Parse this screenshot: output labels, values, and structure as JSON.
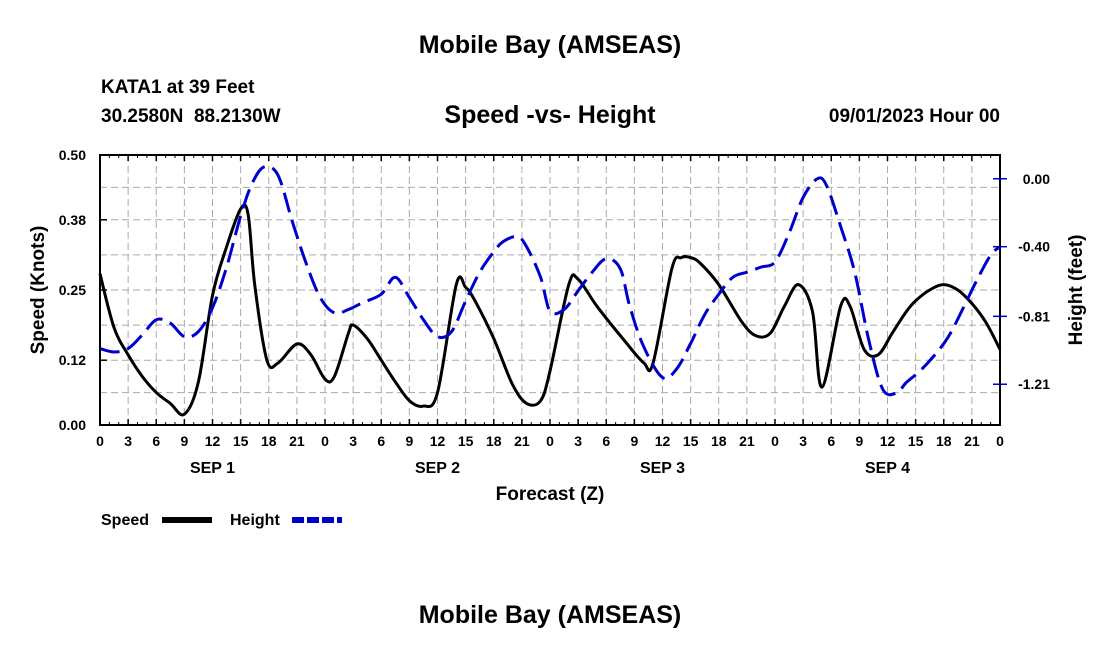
{
  "header": {
    "title": "Mobile Bay (AMSEAS)",
    "station": "KATA1 at 39 Feet",
    "coords": "30.2580N  88.2130W",
    "subtitle": "Speed -vs- Height",
    "datetime": "09/01/2023 Hour 00",
    "footer_title": "Mobile Bay (AMSEAS)"
  },
  "chart_data": {
    "type": "line",
    "title": "Speed -vs- Height",
    "xlabel": "Forecast (Z)",
    "ylabel": "Speed (Knots)",
    "y2label": "Height (feet)",
    "x_tick_labels": [
      "0",
      "3",
      "6",
      "9",
      "12",
      "15",
      "18",
      "21",
      "0",
      "3",
      "6",
      "9",
      "12",
      "15",
      "18",
      "21",
      "0",
      "3",
      "6",
      "9",
      "12",
      "15",
      "18",
      "21",
      "0",
      "3",
      "6",
      "9",
      "12",
      "15",
      "18",
      "21",
      "0"
    ],
    "day_labels": [
      {
        "label": "SEP 1",
        "hour": 12
      },
      {
        "label": "SEP 2",
        "hour": 36
      },
      {
        "label": "SEP 3",
        "hour": 60
      },
      {
        "label": "SEP 4",
        "hour": 84
      }
    ],
    "xlim_hours": [
      0,
      96
    ],
    "ylim": [
      0,
      0.5
    ],
    "y_ticks": [
      0.0,
      0.12,
      0.25,
      0.38,
      0.5
    ],
    "y_tick_labels": [
      "0.00",
      "0.12",
      "0.25",
      "0.38",
      "0.50"
    ],
    "y2lim": [
      -1.45,
      0.14
    ],
    "y2_ticks": [
      0.0,
      -0.4,
      -0.81,
      -1.21
    ],
    "y2_tick_labels": [
      "0.00",
      "-0.40",
      "-0.81",
      "-1.21"
    ],
    "grid": true,
    "legend_placement": "bottom-left",
    "legend": [
      {
        "label": "Speed",
        "color": "#000000",
        "style": "solid"
      },
      {
        "label": "Height",
        "color": "#0000cc",
        "style": "dashed"
      }
    ],
    "series": [
      {
        "name": "Speed",
        "axis": "left",
        "color": "#000000",
        "hours": [
          0,
          1.5,
          3,
          4.5,
          6,
          7.5,
          9,
          10.5,
          12,
          13.5,
          15,
          15.8,
          16.5,
          17.8,
          19,
          21,
          22.5,
          24,
          25,
          26.5,
          27,
          28.5,
          30,
          31.5,
          33,
          34.5,
          36,
          38,
          39,
          40,
          42,
          44,
          45.5,
          47,
          48,
          50,
          51,
          53,
          56,
          58,
          59,
          61,
          62,
          63,
          64,
          66,
          68.5,
          70,
          71.5,
          73,
          74.5,
          76,
          77,
          79,
          80,
          81.5,
          83,
          84.5,
          86,
          87,
          88.5,
          90,
          91.5,
          93,
          94.5,
          96
        ],
        "values": [
          0.28,
          0.18,
          0.13,
          0.09,
          0.06,
          0.04,
          0.02,
          0.08,
          0.24,
          0.33,
          0.4,
          0.39,
          0.26,
          0.12,
          0.115,
          0.15,
          0.13,
          0.085,
          0.09,
          0.17,
          0.185,
          0.16,
          0.12,
          0.08,
          0.045,
          0.035,
          0.06,
          0.26,
          0.255,
          0.23,
          0.16,
          0.075,
          0.04,
          0.045,
          0.1,
          0.26,
          0.27,
          0.22,
          0.155,
          0.115,
          0.115,
          0.29,
          0.31,
          0.31,
          0.3,
          0.26,
          0.19,
          0.165,
          0.17,
          0.22,
          0.26,
          0.21,
          0.07,
          0.22,
          0.22,
          0.14,
          0.13,
          0.17,
          0.21,
          0.23,
          0.25,
          0.26,
          0.25,
          0.225,
          0.19,
          0.14
        ]
      },
      {
        "name": "Height",
        "axis": "right",
        "color": "#0000cc",
        "hours": [
          0,
          1.5,
          3,
          4.5,
          6,
          7.5,
          9,
          10.5,
          12,
          13.5,
          15,
          16.2,
          17.5,
          19,
          20.5,
          22,
          23.5,
          25,
          26.5,
          28,
          30,
          31.5,
          33,
          34.5,
          36,
          37.5,
          39,
          40.5,
          42,
          43,
          44.5,
          45.5,
          47,
          48,
          49.5,
          51,
          52.5,
          54,
          55.5,
          56.5,
          58,
          60,
          61.5,
          63,
          64.5,
          66,
          67.5,
          69,
          70.5,
          72,
          73.5,
          75,
          76.5,
          77.5,
          79,
          80.5,
          82,
          83.5,
          85,
          86,
          87.5,
          89,
          90.5,
          92,
          93.5,
          95,
          96
        ],
        "values": [
          -1.0,
          -1.02,
          -1.0,
          -0.92,
          -0.83,
          -0.85,
          -0.93,
          -0.9,
          -0.76,
          -0.52,
          -0.22,
          -0.03,
          0.07,
          0.02,
          -0.25,
          -0.5,
          -0.7,
          -0.79,
          -0.77,
          -0.73,
          -0.68,
          -0.58,
          -0.7,
          -0.83,
          -0.93,
          -0.9,
          -0.72,
          -0.55,
          -0.43,
          -0.37,
          -0.34,
          -0.4,
          -0.58,
          -0.78,
          -0.77,
          -0.66,
          -0.55,
          -0.47,
          -0.53,
          -0.75,
          -0.99,
          -1.17,
          -1.12,
          -0.97,
          -0.8,
          -0.68,
          -0.58,
          -0.55,
          -0.52,
          -0.49,
          -0.32,
          -0.11,
          -0.0,
          -0.04,
          -0.28,
          -0.55,
          -0.95,
          -1.24,
          -1.26,
          -1.2,
          -1.13,
          -1.04,
          -0.93,
          -0.77,
          -0.6,
          -0.45,
          -0.4
        ]
      }
    ]
  }
}
